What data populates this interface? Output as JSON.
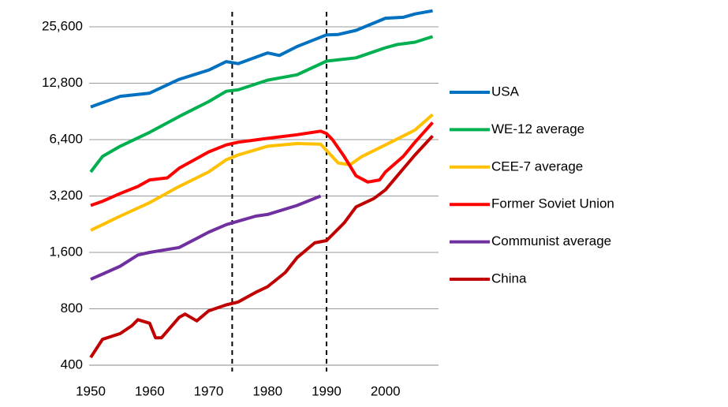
{
  "chart_data": {
    "type": "line",
    "xlim": [
      1950,
      2009
    ],
    "xticks": [
      1950,
      1960,
      1970,
      1980,
      1990,
      2000
    ],
    "ylim": [
      400,
      32000
    ],
    "log_scale": true,
    "grid": true,
    "legend": "right",
    "yticks": [
      400,
      800,
      {
        "value": 1600,
        "label": "1,600"
      },
      {
        "value": 3200,
        "label": "3,200"
      },
      {
        "value": 6400,
        "label": "6,400"
      },
      {
        "value": 12800,
        "label": "12,800"
      },
      {
        "value": 25600,
        "label": "25,600"
      }
    ],
    "vlines": [
      1974,
      1990
    ],
    "series": [
      {
        "name": "USA",
        "color": "#0070C0",
        "x": [
          1950,
          1955,
          1960,
          1965,
          1970,
          1973,
          1975,
          1980,
          1982,
          1985,
          1990,
          1992,
          1995,
          2000,
          2003,
          2005,
          2008
        ],
        "values": [
          9561,
          10897,
          11328,
          13419,
          15030,
          16689,
          16284,
          18577,
          18000,
          20100,
          23201,
          23300,
          24500,
          28467,
          28800,
          30000,
          31178
        ]
      },
      {
        "name": "WE-12 average",
        "color": "#00B050",
        "x": [
          1950,
          1952,
          1955,
          1960,
          1965,
          1970,
          1973,
          1975,
          1980,
          1985,
          1990,
          1995,
          2000,
          2002,
          2005,
          2008
        ],
        "values": [
          4300,
          5200,
          5900,
          7000,
          8500,
          10200,
          11600,
          11800,
          13300,
          14200,
          16800,
          17500,
          19800,
          20600,
          21200,
          22700
        ]
      },
      {
        "name": "CEE-7 average",
        "color": "#FFC000",
        "x": [
          1950,
          1955,
          1960,
          1965,
          1970,
          1973,
          1975,
          1980,
          1985,
          1989,
          1990,
          1992,
          1994,
          1996,
          2000,
          2005,
          2008
        ],
        "values": [
          2100,
          2500,
          2950,
          3600,
          4300,
          5000,
          5300,
          5900,
          6100,
          6050,
          5600,
          4800,
          4700,
          5200,
          6000,
          7200,
          8700
        ]
      },
      {
        "name": "Former Soviet Union",
        "color": "#FF0000",
        "x": [
          1950,
          1952,
          1955,
          1958,
          1960,
          1963,
          1965,
          1970,
          1973,
          1975,
          1980,
          1985,
          1989,
          1990,
          1991,
          1993,
          1995,
          1997,
          1999,
          2000,
          2003,
          2005,
          2008
        ],
        "values": [
          2850,
          3000,
          3300,
          3600,
          3900,
          4000,
          4500,
          5500,
          6000,
          6200,
          6500,
          6800,
          7100,
          6900,
          6400,
          5200,
          4100,
          3800,
          3900,
          4300,
          5200,
          6200,
          7900
        ]
      },
      {
        "name": "Communist average",
        "color": "#7030A0",
        "x": [
          1950,
          1955,
          1958,
          1960,
          1965,
          1970,
          1973,
          1975,
          1978,
          1980,
          1985,
          1989
        ],
        "values": [
          1150,
          1350,
          1550,
          1600,
          1700,
          2050,
          2250,
          2350,
          2500,
          2550,
          2850,
          3200
        ]
      },
      {
        "name": "China",
        "color": "#C00000",
        "x": [
          1950,
          1952,
          1955,
          1957,
          1958,
          1960,
          1961,
          1962,
          1965,
          1966,
          1968,
          1970,
          1973,
          1975,
          1978,
          1980,
          1983,
          1985,
          1988,
          1990,
          1993,
          1995,
          1998,
          2000,
          2002,
          2005,
          2008
        ],
        "values": [
          440,
          550,
          590,
          650,
          700,
          670,
          560,
          560,
          720,
          750,
          690,
          780,
          840,
          870,
          980,
          1050,
          1250,
          1500,
          1800,
          1850,
          2300,
          2800,
          3100,
          3450,
          4100,
          5300,
          6700
        ]
      }
    ]
  }
}
